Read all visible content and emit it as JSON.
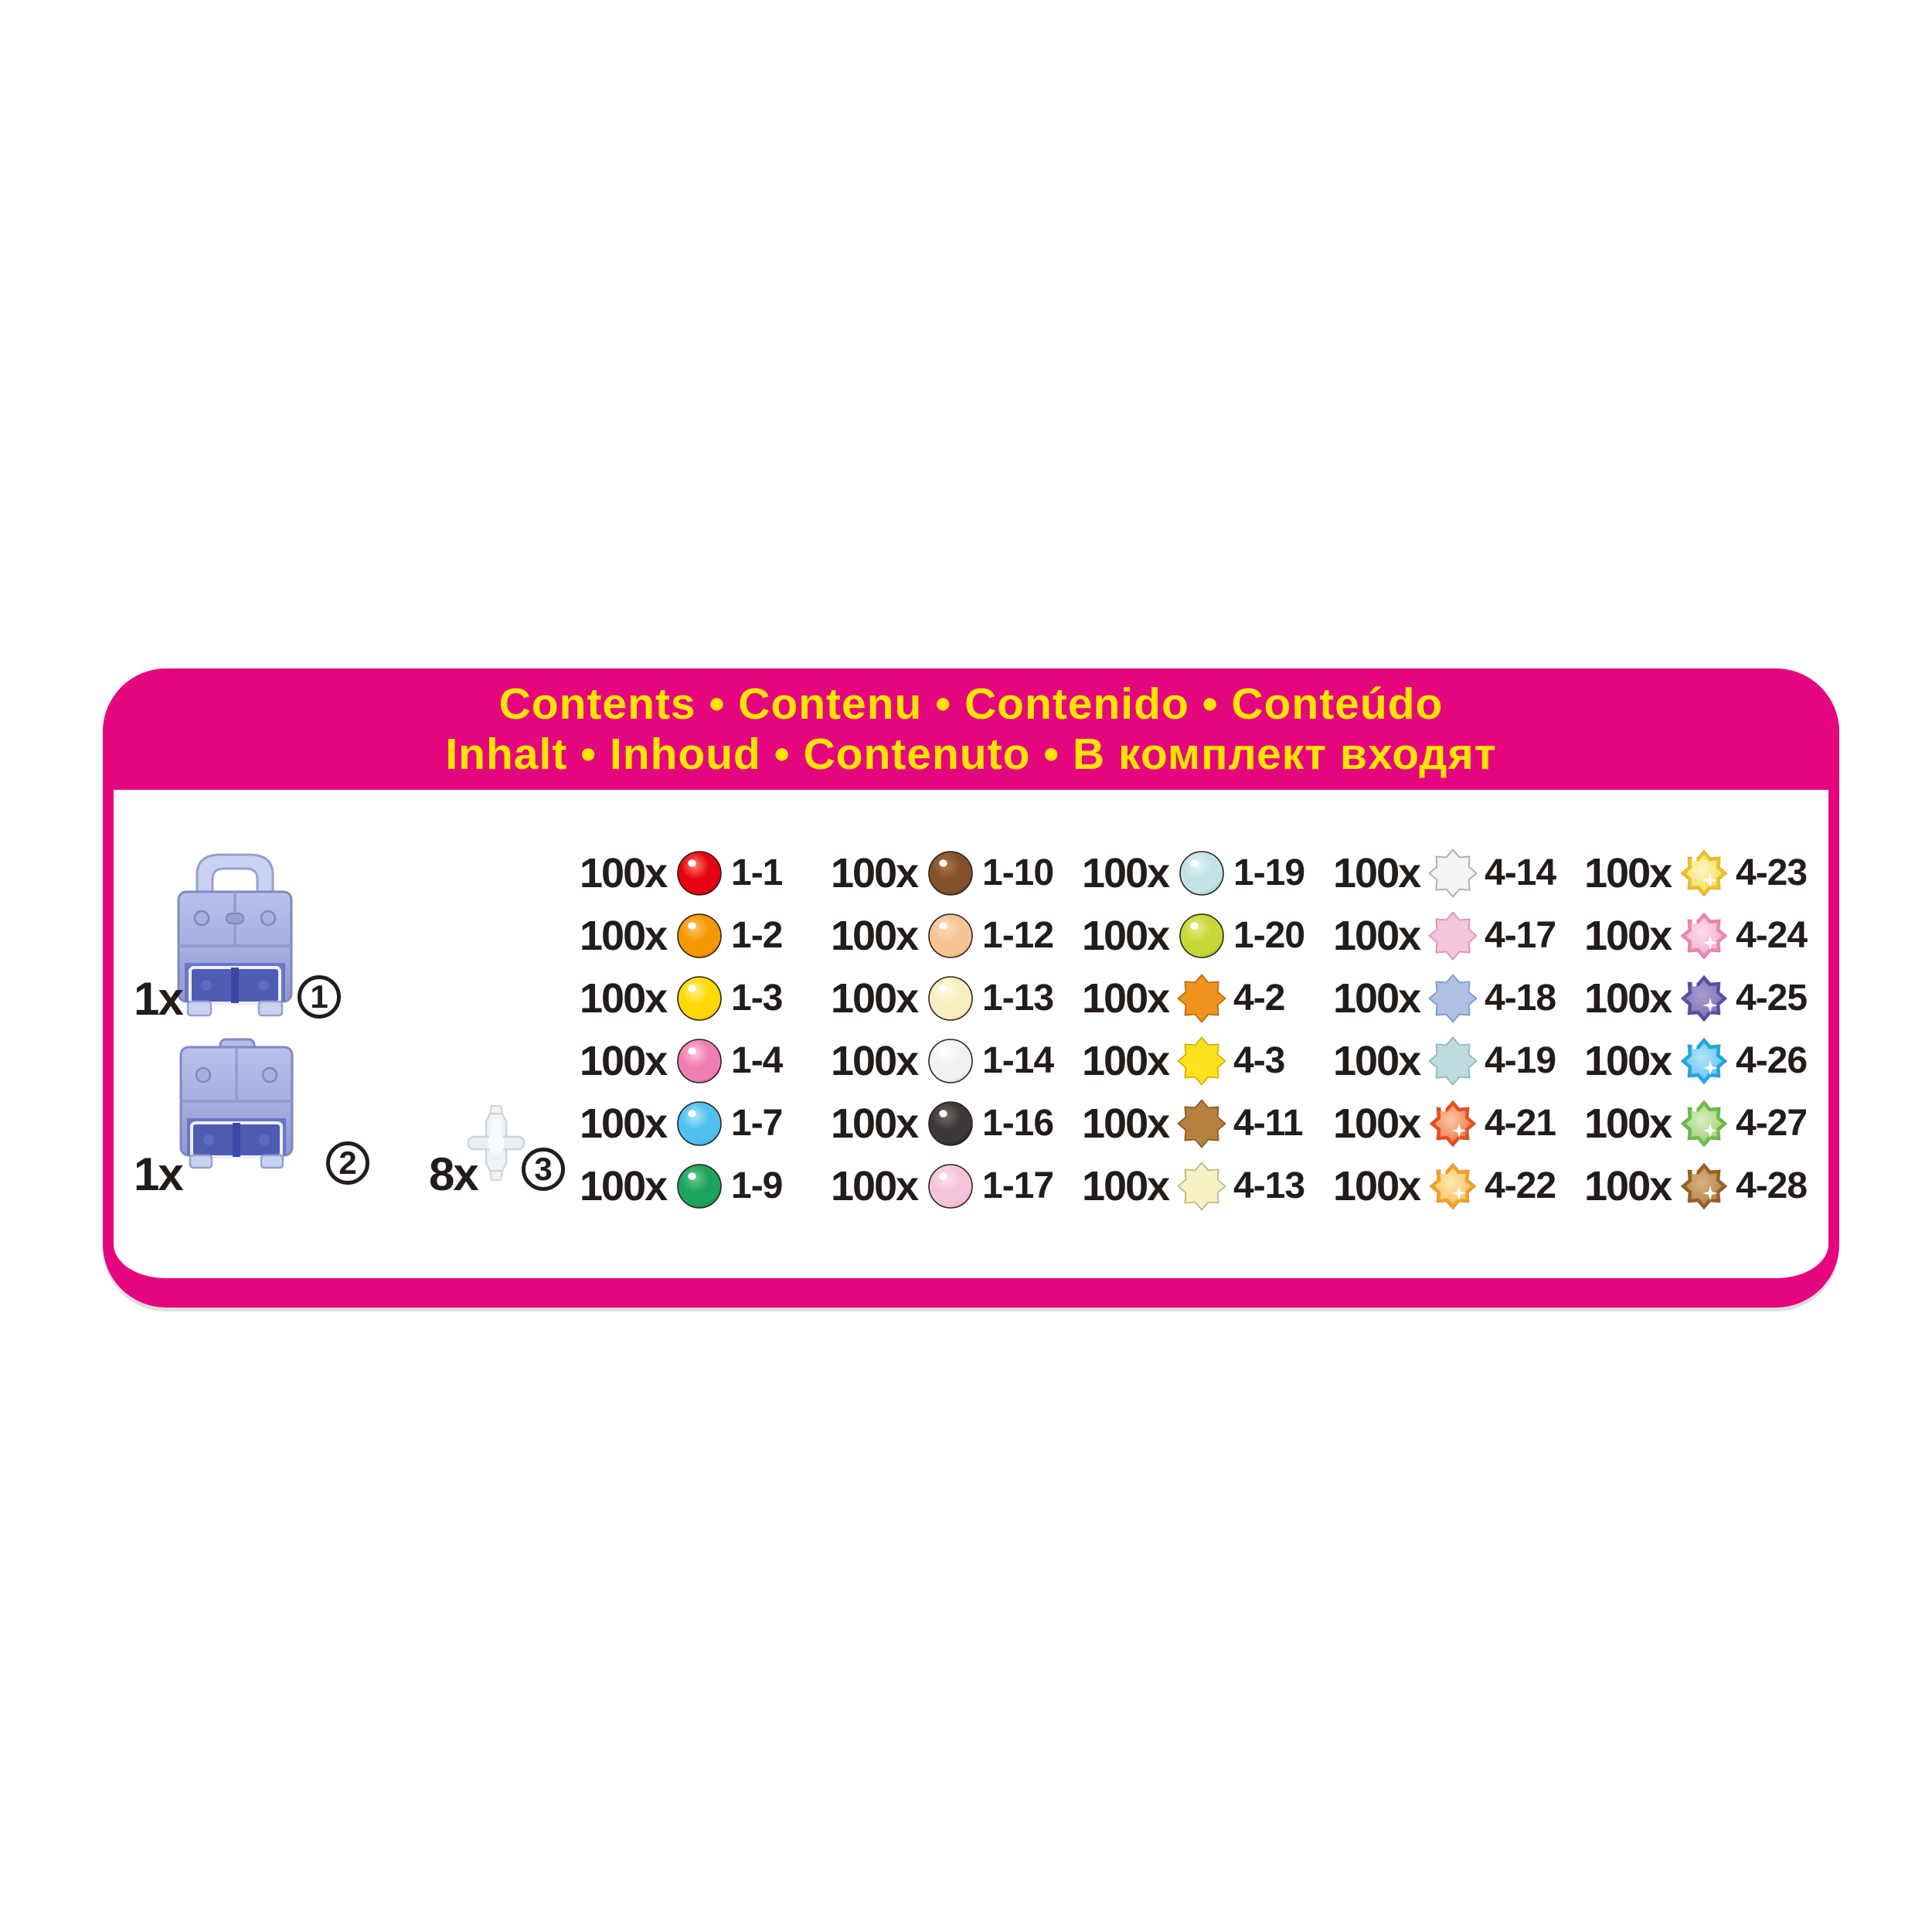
{
  "header": {
    "line1": "Contents • Contenu • Contenido • Conteúdo",
    "line2": "Inhalt • Inhoud • Contenuto • В комплект входят",
    "bg_color": "#E5067F",
    "text_color": "#FFE400"
  },
  "parts": [
    {
      "count": "1x",
      "number": "1",
      "item": "carry-case-with-handle"
    },
    {
      "count": "1x",
      "number": "2",
      "item": "carry-case-flat"
    },
    {
      "count": "8x",
      "number": "3",
      "item": "connector-peg"
    }
  ],
  "bead_columns": [
    {
      "items": [
        {
          "count": "100x",
          "code": "1-1",
          "shape": "round",
          "light": "#FF8266",
          "base": "#E60012",
          "dark": "#BD000E"
        },
        {
          "count": "100x",
          "code": "1-2",
          "shape": "round",
          "light": "#FFC466",
          "base": "#F39800",
          "dark": "#DD7800"
        },
        {
          "count": "100x",
          "code": "1-3",
          "shape": "round",
          "light": "#FFF08F",
          "base": "#FFD900",
          "dark": "#EFAB00"
        },
        {
          "count": "100x",
          "code": "1-4",
          "shape": "round",
          "light": "#FAC2DD",
          "base": "#F07EB2",
          "dark": "#E84E9B"
        },
        {
          "count": "100x",
          "code": "1-7",
          "shape": "round",
          "light": "#AAE3FB",
          "base": "#4FC0EF",
          "dark": "#23A2E0"
        },
        {
          "count": "100x",
          "code": "1-9",
          "shape": "round",
          "light": "#66C791",
          "base": "#1CA45C",
          "dark": "#0D7D45"
        }
      ]
    },
    {
      "items": [
        {
          "count": "100x",
          "code": "1-10",
          "shape": "round",
          "light": "#AC7547",
          "base": "#84512A",
          "dark": "#60391B"
        },
        {
          "count": "100x",
          "code": "1-12",
          "shape": "round",
          "light": "#FBDDBA",
          "base": "#F6C493",
          "dark": "#EA9E5F"
        },
        {
          "count": "100x",
          "code": "1-13",
          "shape": "round",
          "light": "#FDF9E0",
          "base": "#F8EFC0",
          "dark": "#E8D184"
        },
        {
          "count": "100x",
          "code": "1-14",
          "shape": "round",
          "light": "#FFFFFF",
          "base": "#F1F1F1",
          "dark": "#C8C8C8"
        },
        {
          "count": "100x",
          "code": "1-16",
          "shape": "round",
          "light": "#706A67",
          "base": "#3E3938",
          "dark": "#151110"
        },
        {
          "count": "100x",
          "code": "1-17",
          "shape": "round",
          "light": "#FBE1ED",
          "base": "#F4C3D9",
          "dark": "#EA9BBE"
        }
      ]
    },
    {
      "items": [
        {
          "count": "100x",
          "code": "1-19",
          "shape": "round",
          "light": "#E6F3F5",
          "base": "#C2E2E6",
          "dark": "#8AC0C8"
        },
        {
          "count": "100x",
          "code": "1-20",
          "shape": "round",
          "light": "#E5ED89",
          "base": "#C5D833",
          "dark": "#7DBD3E"
        },
        {
          "count": "100x",
          "code": "4-2",
          "shape": "star",
          "fill": "#F0941E",
          "stroke": "#BB6D0E"
        },
        {
          "count": "100x",
          "code": "4-3",
          "shape": "star",
          "fill": "#FFE11E",
          "stroke": "#D2B300"
        },
        {
          "count": "100x",
          "code": "4-11",
          "shape": "star",
          "fill": "#B5813F",
          "stroke": "#895B25"
        },
        {
          "count": "100x",
          "code": "4-13",
          "shape": "star",
          "fill": "#F5F1C3",
          "stroke": "#BDB887"
        }
      ]
    },
    {
      "items": [
        {
          "count": "100x",
          "code": "4-14",
          "shape": "star",
          "fill": "#F4F4F4",
          "stroke": "#AAAAAA"
        },
        {
          "count": "100x",
          "code": "4-17",
          "shape": "star",
          "fill": "#F4C6DB",
          "stroke": "#D492B7"
        },
        {
          "count": "100x",
          "code": "4-18",
          "shape": "star",
          "fill": "#AFC1E2",
          "stroke": "#7E99CA"
        },
        {
          "count": "100x",
          "code": "4-19",
          "shape": "star",
          "fill": "#BEDCDD",
          "stroke": "#8AB8BC"
        },
        {
          "count": "100x",
          "code": "4-21",
          "shape": "jewel",
          "border": "#E84D1F",
          "edge": "#EF7038",
          "center": "#F9C9A9"
        },
        {
          "count": "100x",
          "code": "4-22",
          "shape": "jewel",
          "border": "#F5A020",
          "edge": "#F8BE52",
          "center": "#FCE9B4"
        }
      ]
    },
    {
      "items": [
        {
          "count": "100x",
          "code": "4-23",
          "shape": "jewel",
          "border": "#EFC21E",
          "edge": "#F6DA52",
          "center": "#FDF6C4"
        },
        {
          "count": "100x",
          "code": "4-24",
          "shape": "jewel",
          "border": "#F283B5",
          "edge": "#F6ABCD",
          "center": "#FBDEEB"
        },
        {
          "count": "100x",
          "code": "4-25",
          "shape": "jewel",
          "border": "#5B4EA2",
          "edge": "#7E6FB8",
          "center": "#A89BCD"
        },
        {
          "count": "100x",
          "code": "4-26",
          "shape": "jewel",
          "border": "#1FA7E6",
          "edge": "#5BC0F2",
          "center": "#B4E3FA"
        },
        {
          "count": "100x",
          "code": "4-27",
          "shape": "jewel",
          "border": "#6CBE46",
          "edge": "#98CE6A",
          "center": "#DCEFC3"
        },
        {
          "count": "100x",
          "code": "4-28",
          "shape": "jewel",
          "border": "#95631E",
          "edge": "#B07E43",
          "center": "#D7B184"
        }
      ]
    }
  ]
}
